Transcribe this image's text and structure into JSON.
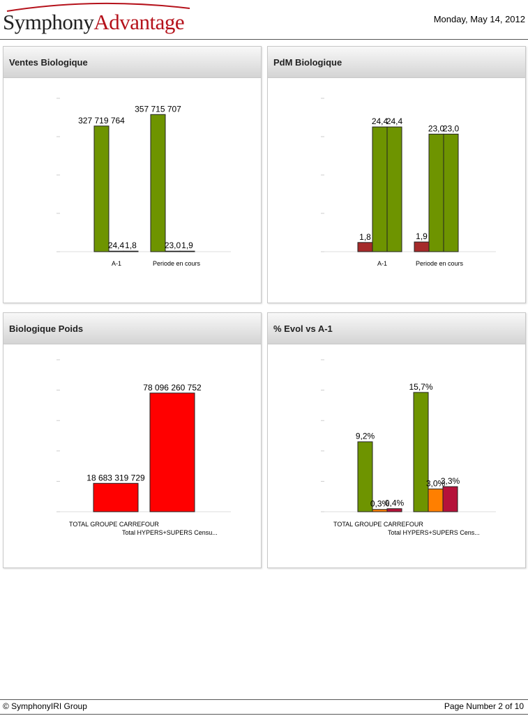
{
  "header": {
    "logo_part1": "Symphony",
    "logo_part2": "Advantage",
    "date": "Monday, May 14, 2012"
  },
  "footer": {
    "copyright": "© SymphonyIRI Group",
    "page_label": "Page Number 2 of 10"
  },
  "colors": {
    "green": "#6e9400",
    "red": "#ff0000",
    "darkred": "#a52a2a",
    "orange": "#ff7f00",
    "crimson": "#b5123a"
  },
  "chart_data": [
    {
      "id": "ventes",
      "type": "bar",
      "title": "Ventes Biologique",
      "categories": [
        "A-1",
        "Periode en cours"
      ],
      "series": [
        {
          "color": "#6e9400",
          "values": [
            327719764,
            357715707
          ],
          "labels": [
            "327 719 764",
            "357 715 707"
          ]
        },
        {
          "color": "#6e9400",
          "values": [
            24.4,
            23.0
          ],
          "labels": [
            "24,4",
            "23,0"
          ]
        },
        {
          "color": "#a52a2a",
          "values": [
            1.8,
            1.9
          ],
          "labels": [
            "1,8",
            "1,9"
          ]
        }
      ],
      "ylim": [
        0,
        400000000
      ]
    },
    {
      "id": "pdm",
      "type": "bar",
      "title": "PdM Biologique",
      "categories": [
        "A-1",
        "Periode en cours"
      ],
      "series": [
        {
          "color": "#a52a2a",
          "values": [
            1.8,
            1.9
          ],
          "labels": [
            "1,8",
            "1,9"
          ]
        },
        {
          "color": "#6e9400",
          "values": [
            24.4,
            23.0
          ],
          "labels": [
            "24,4",
            "23,0"
          ]
        },
        {
          "color": "#6e9400",
          "values": [
            24.4,
            23.0
          ],
          "labels": [
            "24,4",
            "23,0"
          ]
        }
      ],
      "ylim": [
        0,
        30
      ]
    },
    {
      "id": "poids",
      "type": "bar",
      "title": "Biologique Poids",
      "categories": [
        "TOTAL GROUPE CARREFOUR",
        "Total HYPERS+SUPERS Censu..."
      ],
      "series": [
        {
          "color": "#ff0000",
          "values": [
            18683319729,
            78096260752
          ],
          "labels": [
            "18 683 319 729",
            "78 096 260 752"
          ]
        }
      ],
      "ylim": [
        0,
        100000000000
      ]
    },
    {
      "id": "evol",
      "type": "bar",
      "title": "% Evol vs A-1",
      "categories": [
        "TOTAL GROUPE CARREFOUR",
        "Total HYPERS+SUPERS Cens..."
      ],
      "series": [
        {
          "color": "#6e9400",
          "values": [
            9.2,
            15.7
          ],
          "labels": [
            "9,2%",
            "15,7%"
          ]
        },
        {
          "color": "#ff7f00",
          "values": [
            0.3,
            3.0
          ],
          "labels": [
            "0,3%",
            "3,0%"
          ]
        },
        {
          "color": "#b5123a",
          "values": [
            0.4,
            3.3
          ],
          "labels": [
            "0,4%",
            "3,3%"
          ]
        }
      ],
      "ylim": [
        0,
        20
      ]
    }
  ]
}
